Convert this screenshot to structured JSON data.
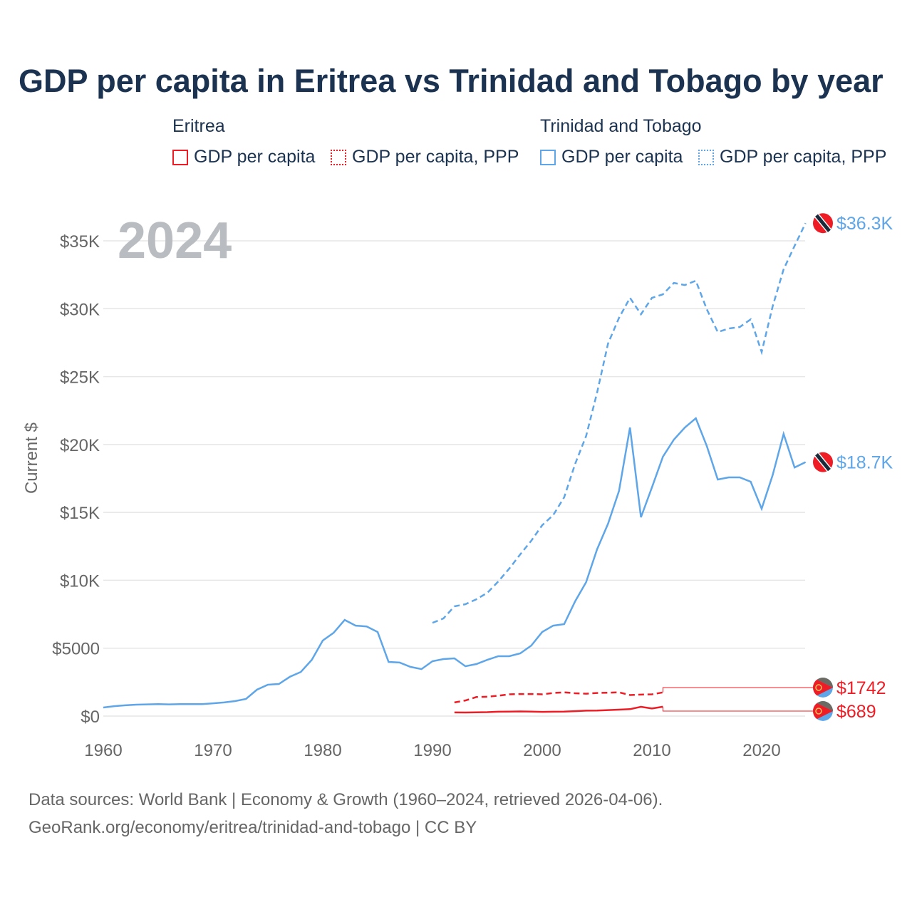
{
  "chart_data": {
    "type": "line",
    "title": "GDP per capita in Eritrea vs Trinidad and Tobago by year",
    "ylabel": "Current $",
    "xlabel": "",
    "year_watermark": "2024",
    "ylim": [
      0,
      37000
    ],
    "xlim": [
      1960,
      2024
    ],
    "x_ticks": [
      1960,
      1970,
      1980,
      1990,
      2000,
      2010,
      2020
    ],
    "x_tick_labels": [
      "1960",
      "1970",
      "1980",
      "1990",
      "2000",
      "2010",
      "2020"
    ],
    "y_ticks": [
      0,
      5000,
      10000,
      15000,
      20000,
      25000,
      30000,
      35000
    ],
    "y_tick_labels": [
      "$0",
      "$5000",
      "$10K",
      "$15K",
      "$20K",
      "$25K",
      "$30K",
      "$35K"
    ],
    "grid": true,
    "legend": {
      "position": "top",
      "groups": [
        {
          "name": "Eritrea",
          "items": [
            "GDP per capita",
            "GDP per capita, PPP"
          ]
        },
        {
          "name": "Trinidad and Tobago",
          "items": [
            "GDP per capita",
            "GDP per capita, PPP"
          ]
        }
      ]
    },
    "series": [
      {
        "name": "Trinidad and Tobago GDP per capita",
        "country": "Trinidad and Tobago",
        "color": "#5ea6e8",
        "dash": false,
        "end_label": "$18.7K",
        "start_year": 1960,
        "values": [
          630,
          730,
          790,
          840,
          860,
          880,
          860,
          880,
          880,
          880,
          940,
          1000,
          1100,
          1260,
          1940,
          2310,
          2360,
          2890,
          3250,
          4140,
          5560,
          6140,
          7080,
          6660,
          6600,
          6190,
          3990,
          3940,
          3620,
          3460,
          4040,
          4200,
          4250,
          3670,
          3830,
          4140,
          4410,
          4410,
          4620,
          5190,
          6190,
          6660,
          6770,
          8450,
          9860,
          12280,
          14170,
          16580,
          21250,
          14640,
          16840,
          19100,
          20360,
          21250,
          21930,
          19890,
          17420,
          17580,
          17580,
          17260,
          15270,
          17740,
          20780,
          18310,
          18700
        ]
      },
      {
        "name": "Trinidad and Tobago GDP per capita, PPP",
        "country": "Trinidad and Tobago",
        "color": "#5ea6e8",
        "dash": true,
        "end_label": "$36.3K",
        "start_year": 1990,
        "values": [
          6870,
          7190,
          8080,
          8240,
          8600,
          9080,
          9920,
          10860,
          11910,
          12910,
          14060,
          14800,
          16110,
          18570,
          20620,
          23820,
          27440,
          29330,
          30800,
          29590,
          30800,
          31060,
          31900,
          31740,
          32060,
          29960,
          28280,
          28540,
          28650,
          29220,
          26810,
          30170,
          32900,
          34630,
          36300
        ]
      },
      {
        "name": "Eritrea GDP per capita",
        "country": "Eritrea",
        "color": "#ee1c25",
        "dash": false,
        "end_label": "$689",
        "start_year": 1992,
        "values": [
          270,
          260,
          280,
          290,
          320,
          330,
          340,
          330,
          310,
          320,
          330,
          360,
          400,
          410,
          440,
          470,
          510,
          680,
          560,
          689
        ]
      },
      {
        "name": "Eritrea GDP per capita, PPP",
        "country": "Eritrea",
        "color": "#ee1c25",
        "dash": true,
        "end_label": "$1742",
        "start_year": 1992,
        "values": [
          1000,
          1150,
          1400,
          1420,
          1500,
          1600,
          1620,
          1620,
          1600,
          1700,
          1750,
          1680,
          1650,
          1700,
          1720,
          1750,
          1550,
          1580,
          1600,
          1742
        ]
      }
    ]
  },
  "legend": {
    "eritrea": "Eritrea",
    "tt": "Trinidad and Tobago",
    "gdp": "GDP per capita",
    "ppp": "GDP per capita, PPP"
  },
  "footer": {
    "line1": "Data sources: World Bank | Economy & Growth (1960–2024, retrieved 2026-04-06).",
    "line2": "GeoRank.org/economy/eritrea/trinidad-and-tobago | CC BY"
  }
}
